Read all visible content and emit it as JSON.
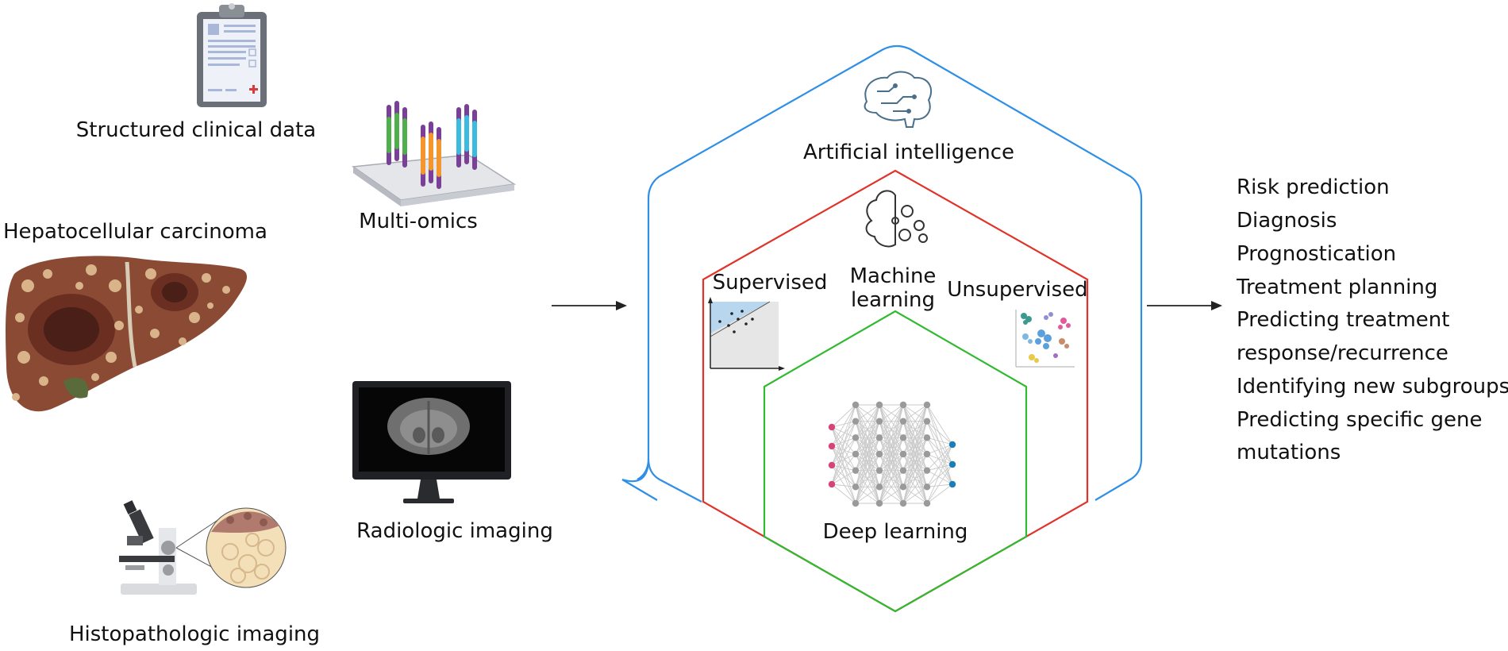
{
  "inputs": {
    "structured_clinical": "Structured clinical data",
    "multi_omics": "Multi-omics",
    "hcc": "Hepatocellular carcinoma",
    "radiologic": "Radiologic imaging",
    "histopathologic": "Histopathologic imaging"
  },
  "diagram": {
    "ai": "Artificial intelligence",
    "ml_line1": "Machine",
    "ml_line2": "learning",
    "supervised": "Supervised",
    "unsupervised": "Unsupervised",
    "dl": "Deep learning"
  },
  "outputs": [
    "Risk prediction",
    "Diagnosis",
    "Prognostication",
    "Treatment planning",
    "Predicting treatment",
    "response/recurrence",
    "Identifying new subgroups",
    "Predicting specific gene",
    "mutations"
  ],
  "colors": {
    "ai_border": "#2f8fe6",
    "ml_border": "#e0342a",
    "dl_border": "#2fba2f",
    "arrow": "#222222"
  },
  "icons": [
    "clipboard-icon",
    "microarray-icon",
    "liver-icon",
    "monitor-icon",
    "microscope-icon",
    "brain-circuit-icon",
    "brain-gears-icon",
    "scatter-plot-icon",
    "cluster-plot-icon",
    "neural-network-icon"
  ]
}
